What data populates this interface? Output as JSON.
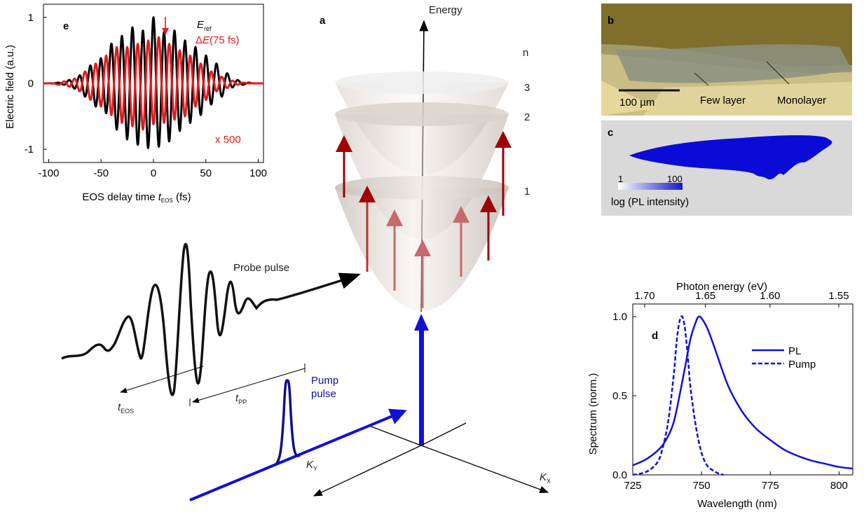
{
  "panel_a": {
    "letter": "a",
    "energy_label": "Energy",
    "n_label": "n",
    "levels": [
      "3",
      "2",
      "1"
    ],
    "probe_label": "Probe pulse",
    "pump_label_line1": "Pump",
    "pump_label_line2": "pulse",
    "t_eos": {
      "base": "t",
      "sub": "EOS"
    },
    "t_pp": {
      "base": "t",
      "sub": "PP"
    },
    "kx": {
      "base": "K",
      "sub": "X"
    },
    "ky": {
      "base": "K",
      "sub": "Y"
    }
  },
  "panel_b": {
    "letter": "b",
    "scalebar": "100 µm",
    "few_layer": "Few layer",
    "monolayer": "Monolayer"
  },
  "panel_c": {
    "letter": "c",
    "scale_min": "1",
    "scale_max": "100",
    "scale_label": "log (PL intensity)"
  },
  "colors": {
    "ref": "#000000",
    "delta": "#e41a1c",
    "blue": "#1010d8",
    "dark_red": "#a00000"
  },
  "chart_data": [
    {
      "id": "e",
      "type": "line",
      "letter": "e",
      "xlabel": {
        "prefix": "EOS delay time ",
        "var": "t",
        "sub": "EOS",
        "suffix": " (fs)"
      },
      "ylabel": "Electric field (a.u.)",
      "xlim": [
        -105,
        105
      ],
      "ylim": [
        -1.2,
        1.2
      ],
      "xticks": [
        -100,
        -50,
        0,
        50,
        100
      ],
      "yticks": [
        {
          "value": -1,
          "label": "-1"
        },
        {
          "value": 0,
          "label": "0"
        },
        {
          "value": 1,
          "label": "1"
        }
      ],
      "legend": [
        {
          "base": "E",
          "sub": "ref",
          "paren": "",
          "prefix": "",
          "color": "#000000"
        },
        {
          "base": "E",
          "sub": "",
          "paren": "(75 fs)",
          "prefix": "Δ",
          "color": "#e41a1c"
        }
      ],
      "annotation": "x 500",
      "series": [
        {
          "label": "ref",
          "color": "#000000",
          "x": [
            -105,
            -100,
            -95,
            -90,
            -85,
            -80,
            -75,
            -70,
            -65,
            -60,
            -55,
            -50,
            -45,
            -40,
            -35,
            -30,
            -25,
            -20,
            -15,
            -10,
            -5,
            0,
            5,
            10,
            15,
            20,
            25,
            30,
            35,
            40,
            45,
            50,
            55,
            60,
            65,
            70,
            75,
            80,
            85,
            90,
            95,
            100,
            105
          ],
          "y": [
            0,
            0,
            0,
            0.01,
            -0.02,
            0.05,
            -0.08,
            0.12,
            -0.2,
            0.27,
            -0.35,
            0.38,
            -0.45,
            0.6,
            -0.7,
            0.72,
            -0.85,
            0.85,
            -0.93,
            0.8,
            -0.98,
            1.0,
            -0.96,
            0.78,
            -0.88,
            0.8,
            -0.72,
            0.65,
            -0.6,
            0.55,
            -0.48,
            0.42,
            -0.32,
            0.3,
            -0.2,
            0.15,
            -0.06,
            0.05,
            -0.02,
            0.01,
            0,
            0,
            0
          ]
        },
        {
          "label": "delta",
          "color": "#e41a1c",
          "x": [
            -105,
            -100,
            -95,
            -90,
            -85,
            -80,
            -75,
            -70,
            -65,
            -60,
            -55,
            -50,
            -45,
            -40,
            -35,
            -30,
            -25,
            -20,
            -15,
            -10,
            -5,
            0,
            5,
            10,
            15,
            20,
            25,
            30,
            35,
            40,
            45,
            50,
            55,
            60,
            65,
            70,
            75,
            80,
            85,
            90,
            95,
            100,
            105
          ],
          "y": [
            0,
            0,
            0,
            -0.02,
            0.03,
            -0.05,
            0.07,
            -0.12,
            0.18,
            -0.25,
            0.3,
            -0.35,
            0.42,
            -0.48,
            0.55,
            -0.6,
            0.55,
            -0.65,
            0.6,
            -0.7,
            0.65,
            -0.62,
            0.7,
            -0.6,
            0.6,
            -0.55,
            0.5,
            -0.5,
            0.42,
            -0.35,
            0.3,
            -0.25,
            0.18,
            -0.12,
            0.1,
            -0.07,
            0.04,
            -0.02,
            0.01,
            0,
            0,
            0,
            0
          ]
        }
      ]
    },
    {
      "id": "d",
      "type": "line",
      "letter": "d",
      "xlabel": "Wavelength (nm)",
      "ylabel": "Spectrum (norm.)",
      "top_xlabel": "Photon energy (eV)",
      "xlim": [
        725,
        805
      ],
      "ylim": [
        0,
        1.08
      ],
      "xticks": [
        725,
        750,
        775,
        800
      ],
      "yticks": [
        {
          "value": 0,
          "label": "0.0"
        },
        {
          "value": 0.5,
          "label": "0.5"
        },
        {
          "value": 1.0,
          "label": "1.0"
        }
      ],
      "top_ticks": [
        {
          "value": 1.7,
          "label": "1.70"
        },
        {
          "value": 1.65,
          "label": "1.65"
        },
        {
          "value": 1.6,
          "label": "1.60"
        },
        {
          "value": 1.55,
          "label": "1.55"
        }
      ],
      "series": [
        {
          "name": "PL",
          "color": "#1010d8",
          "dash": false,
          "x": [
            725,
            730,
            735,
            738,
            740,
            742,
            744,
            746,
            748,
            749,
            750,
            752,
            754,
            756,
            758,
            760,
            763,
            766,
            770,
            775,
            780,
            785,
            790,
            795,
            800,
            805
          ],
          "y": [
            0.06,
            0.1,
            0.17,
            0.25,
            0.34,
            0.5,
            0.68,
            0.86,
            0.97,
            1.0,
            0.99,
            0.93,
            0.84,
            0.74,
            0.64,
            0.55,
            0.45,
            0.37,
            0.29,
            0.22,
            0.16,
            0.12,
            0.09,
            0.07,
            0.05,
            0.04
          ]
        },
        {
          "name": "Pump",
          "color": "#1010d8",
          "dash": true,
          "x": [
            725,
            730,
            734,
            736,
            738,
            740,
            741,
            742,
            743,
            744,
            745,
            746,
            748,
            750,
            752,
            754,
            756,
            758
          ],
          "y": [
            0.0,
            0.02,
            0.08,
            0.18,
            0.35,
            0.65,
            0.85,
            0.97,
            1.0,
            0.92,
            0.75,
            0.55,
            0.3,
            0.14,
            0.06,
            0.03,
            0.01,
            0.0
          ]
        }
      ]
    }
  ]
}
